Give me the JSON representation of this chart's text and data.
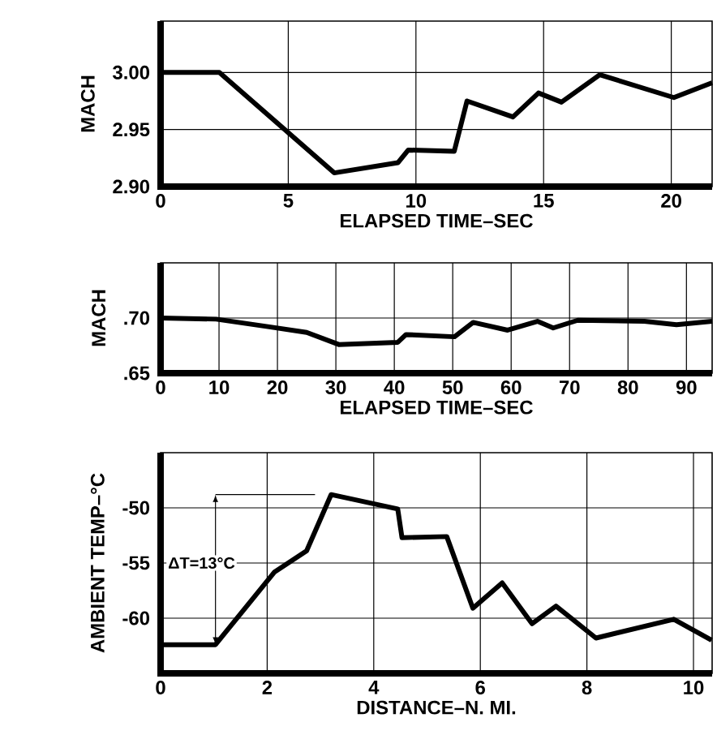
{
  "chart_data": [
    {
      "type": "line",
      "xlabel": "ELAPSED TIME–SEC",
      "ylabel": "MACH",
      "x": [
        0,
        2.3,
        6.8,
        9.3,
        9.7,
        11.5,
        12.0,
        13.8,
        14.8,
        15.7,
        17.2,
        20.1,
        21.6
      ],
      "series": [
        {
          "color": "#000000",
          "values": [
            3.0,
            3.0,
            2.912,
            2.921,
            2.932,
            2.931,
            2.975,
            2.961,
            2.982,
            2.974,
            2.998,
            2.978,
            2.991
          ]
        }
      ],
      "xlim": [
        0,
        21.6
      ],
      "ylim": [
        2.9,
        3.045
      ],
      "xticks": [
        0,
        5,
        10,
        15,
        20
      ],
      "yticks": [
        {
          "value": 2.9,
          "label": "2.90"
        },
        {
          "value": 2.95,
          "label": "2.95"
        },
        {
          "value": 3.0,
          "label": "3.00"
        }
      ],
      "grid": true,
      "marker": "none",
      "line_style": "solid"
    },
    {
      "type": "line",
      "xlabel": "ELAPSED TIME–SEC",
      "ylabel": "MACH",
      "x": [
        0,
        9.5,
        18.6,
        25,
        30.5,
        40.6,
        42,
        50.3,
        53.5,
        59.4,
        64.5,
        67.2,
        71.4,
        82.8,
        88.3,
        94.4
      ],
      "series": [
        {
          "color": "#000000",
          "values": [
            0.7,
            0.699,
            0.692,
            0.687,
            0.676,
            0.678,
            0.685,
            0.683,
            0.696,
            0.689,
            0.697,
            0.691,
            0.698,
            0.697,
            0.694,
            0.697
          ]
        }
      ],
      "xlim": [
        0,
        94.4
      ],
      "ylim": [
        0.65,
        0.75
      ],
      "xticks": [
        0,
        10,
        20,
        30,
        40,
        50,
        60,
        70,
        80,
        90
      ],
      "yticks": [
        {
          "value": 0.65,
          "label": ".65"
        },
        {
          "value": 0.7,
          "label": ".70"
        }
      ],
      "grid": true,
      "marker": "none",
      "line_style": "solid"
    },
    {
      "type": "line",
      "xlabel": "DISTANCE–N. MI.",
      "ylabel": "AMBIENT TEMP–°C",
      "x": [
        0,
        1.03,
        2.14,
        2.74,
        3.2,
        4.45,
        4.53,
        5.37,
        5.86,
        6.41,
        6.97,
        7.42,
        8.17,
        9.63,
        10.34
      ],
      "series": [
        {
          "color": "#000000",
          "values": [
            -62.4,
            -62.4,
            -55.8,
            -53.9,
            -48.8,
            -50.1,
            -52.7,
            -52.6,
            -59.1,
            -56.8,
            -60.5,
            -58.9,
            -61.8,
            -60.1,
            -62.0
          ]
        }
      ],
      "xlim": [
        0,
        10.35
      ],
      "ylim": [
        -65,
        -45
      ],
      "xticks": [
        0,
        2,
        4,
        6,
        8,
        10
      ],
      "yticks": [
        -60,
        -55,
        -50
      ],
      "grid": true,
      "marker": "none",
      "line_style": "solid",
      "annotations": [
        {
          "text": "ΔT=13°C",
          "x": 1.03,
          "y": -62.4
        }
      ]
    }
  ]
}
